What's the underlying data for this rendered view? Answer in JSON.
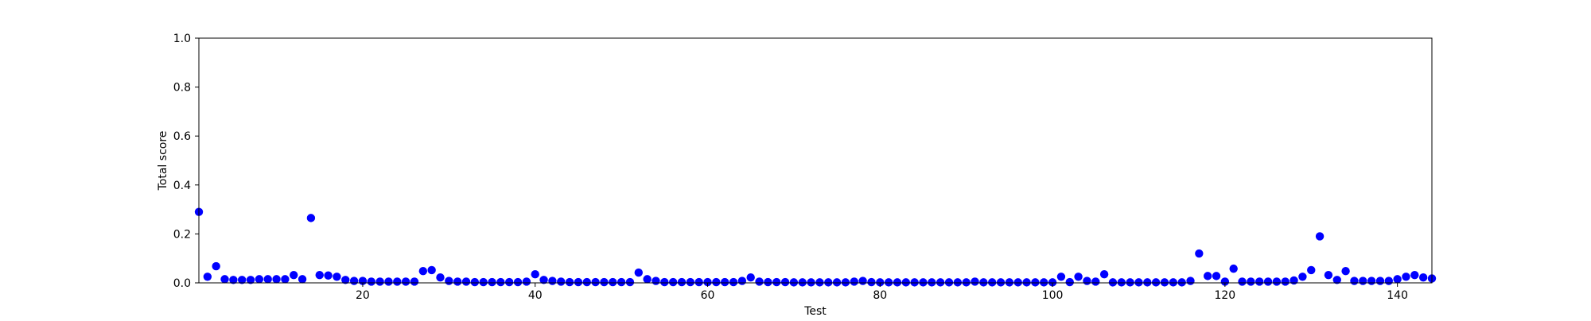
{
  "chart_data": {
    "type": "scatter",
    "title": "",
    "xlabel": "Test",
    "ylabel": "Total score",
    "xlim": [
      1,
      144
    ],
    "ylim": [
      0.0,
      1.0
    ],
    "x_ticks": [
      20,
      40,
      60,
      80,
      100,
      120,
      140
    ],
    "y_ticks": [
      0.0,
      0.2,
      0.4,
      0.6,
      0.8,
      1.0
    ],
    "y_tick_labels": [
      "0.0",
      "0.2",
      "0.4",
      "0.6",
      "0.8",
      "1.0"
    ],
    "marker_color": "#0000ff",
    "grid": false,
    "series": [
      {
        "name": "",
        "x": [
          1,
          2,
          3,
          4,
          5,
          6,
          7,
          8,
          9,
          10,
          11,
          12,
          13,
          14,
          15,
          16,
          17,
          18,
          19,
          20,
          21,
          22,
          23,
          24,
          25,
          26,
          27,
          28,
          29,
          30,
          31,
          32,
          33,
          34,
          35,
          36,
          37,
          38,
          39,
          40,
          41,
          42,
          43,
          44,
          45,
          46,
          47,
          48,
          49,
          50,
          51,
          52,
          53,
          54,
          55,
          56,
          57,
          58,
          59,
          60,
          61,
          62,
          63,
          64,
          65,
          66,
          67,
          68,
          69,
          70,
          71,
          72,
          73,
          74,
          75,
          76,
          77,
          78,
          79,
          80,
          81,
          82,
          83,
          84,
          85,
          86,
          87,
          88,
          89,
          90,
          91,
          92,
          93,
          94,
          95,
          96,
          97,
          98,
          99,
          100,
          101,
          102,
          103,
          104,
          105,
          106,
          107,
          108,
          109,
          110,
          111,
          112,
          113,
          114,
          115,
          116,
          117,
          118,
          119,
          120,
          121,
          122,
          123,
          124,
          125,
          126,
          127,
          128,
          129,
          130,
          131,
          132,
          133,
          134,
          135,
          136,
          137,
          138,
          139,
          140,
          141,
          142,
          143,
          144
        ],
        "y": [
          0.29,
          0.025,
          0.068,
          0.015,
          0.012,
          0.012,
          0.012,
          0.015,
          0.015,
          0.015,
          0.015,
          0.032,
          0.015,
          0.265,
          0.032,
          0.03,
          0.025,
          0.012,
          0.008,
          0.008,
          0.005,
          0.005,
          0.005,
          0.005,
          0.005,
          0.005,
          0.048,
          0.052,
          0.022,
          0.008,
          0.005,
          0.005,
          0.003,
          0.003,
          0.003,
          0.003,
          0.003,
          0.003,
          0.005,
          0.035,
          0.012,
          0.008,
          0.005,
          0.003,
          0.003,
          0.003,
          0.003,
          0.003,
          0.003,
          0.003,
          0.003,
          0.042,
          0.015,
          0.008,
          0.003,
          0.003,
          0.003,
          0.003,
          0.003,
          0.003,
          0.003,
          0.003,
          0.003,
          0.008,
          0.022,
          0.005,
          0.003,
          0.003,
          0.003,
          0.002,
          0.002,
          0.002,
          0.002,
          0.002,
          0.002,
          0.002,
          0.005,
          0.008,
          0.003,
          0.002,
          0.002,
          0.002,
          0.002,
          0.002,
          0.002,
          0.002,
          0.002,
          0.002,
          0.002,
          0.002,
          0.005,
          0.002,
          0.002,
          0.002,
          0.002,
          0.002,
          0.002,
          0.002,
          0.002,
          0.002,
          0.025,
          0.003,
          0.025,
          0.008,
          0.005,
          0.035,
          0.002,
          0.002,
          0.002,
          0.002,
          0.002,
          0.002,
          0.002,
          0.002,
          0.002,
          0.008,
          0.12,
          0.028,
          0.028,
          0.005,
          0.058,
          0.005,
          0.005,
          0.005,
          0.005,
          0.005,
          0.005,
          0.01,
          0.025,
          0.052,
          0.19,
          0.032,
          0.012,
          0.048,
          0.008,
          0.008,
          0.008,
          0.008,
          0.008,
          0.015,
          0.025,
          0.032,
          0.022,
          0.018
        ]
      }
    ]
  }
}
